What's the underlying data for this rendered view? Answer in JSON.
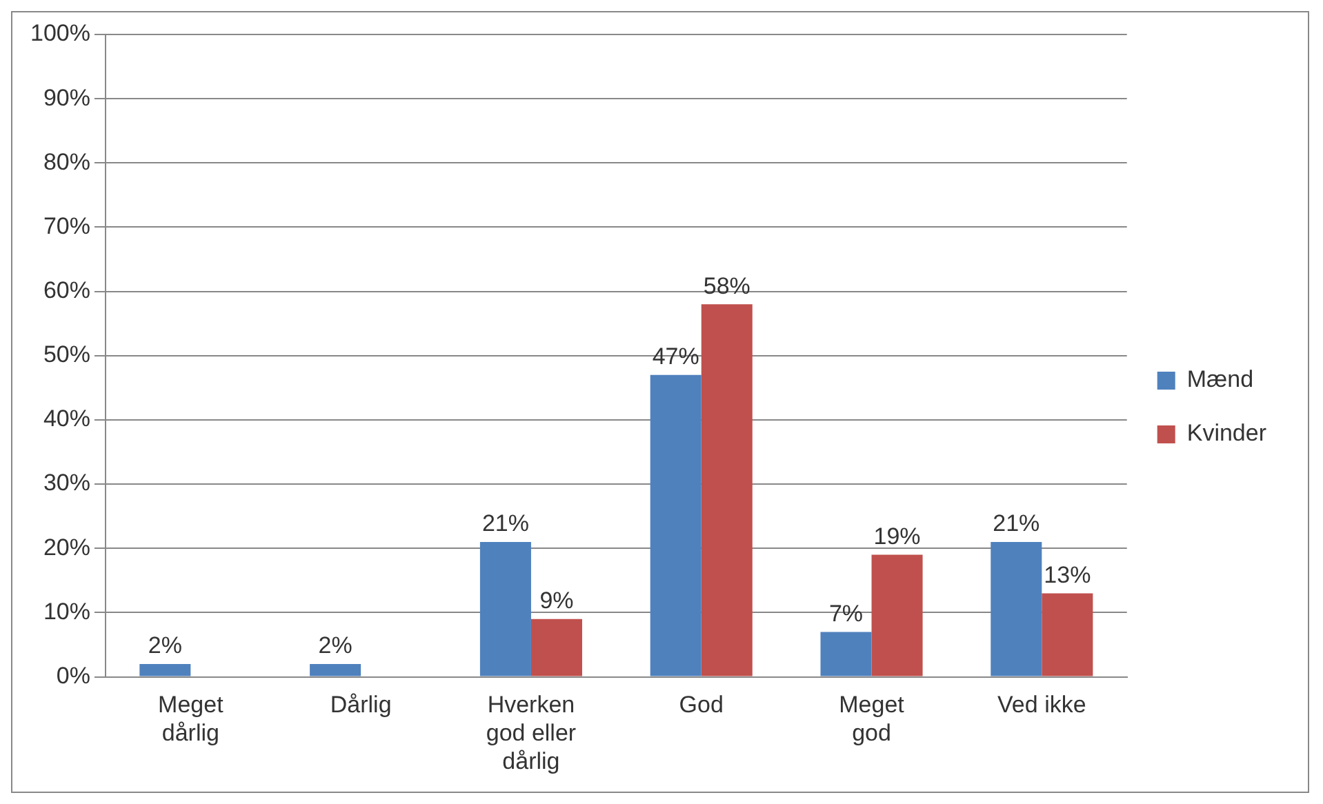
{
  "chart_data": {
    "type": "bar",
    "categories": [
      "Meget dårlig",
      "Dårlig",
      "Hverken god eller dårlig",
      "God",
      "Meget god",
      "Ved ikke"
    ],
    "series": [
      {
        "name": "Mænd",
        "color": "#4f81bd",
        "values": [
          2,
          2,
          21,
          47,
          7,
          21
        ],
        "value_labels": [
          "2%",
          "2%",
          "21%",
          "47%",
          "7%",
          "21%"
        ]
      },
      {
        "name": "Kvinder",
        "color": "#c0504d",
        "values": [
          0,
          0,
          9,
          58,
          19,
          13
        ],
        "value_labels": [
          null,
          null,
          "9%",
          "58%",
          "19%",
          "13%"
        ]
      }
    ],
    "ylim": [
      0,
      100
    ],
    "yticks": [
      {
        "value": 0,
        "label": "0%"
      },
      {
        "value": 10,
        "label": "10%"
      },
      {
        "value": 20,
        "label": "20%"
      },
      {
        "value": 30,
        "label": "30%"
      },
      {
        "value": 40,
        "label": "40%"
      },
      {
        "value": 50,
        "label": "50%"
      },
      {
        "value": 60,
        "label": "60%"
      },
      {
        "value": 70,
        "label": "70%"
      },
      {
        "value": 80,
        "label": "80%"
      },
      {
        "value": 90,
        "label": "90%"
      },
      {
        "value": 100,
        "label": "100%"
      }
    ],
    "grid": "y",
    "legend": "right"
  }
}
